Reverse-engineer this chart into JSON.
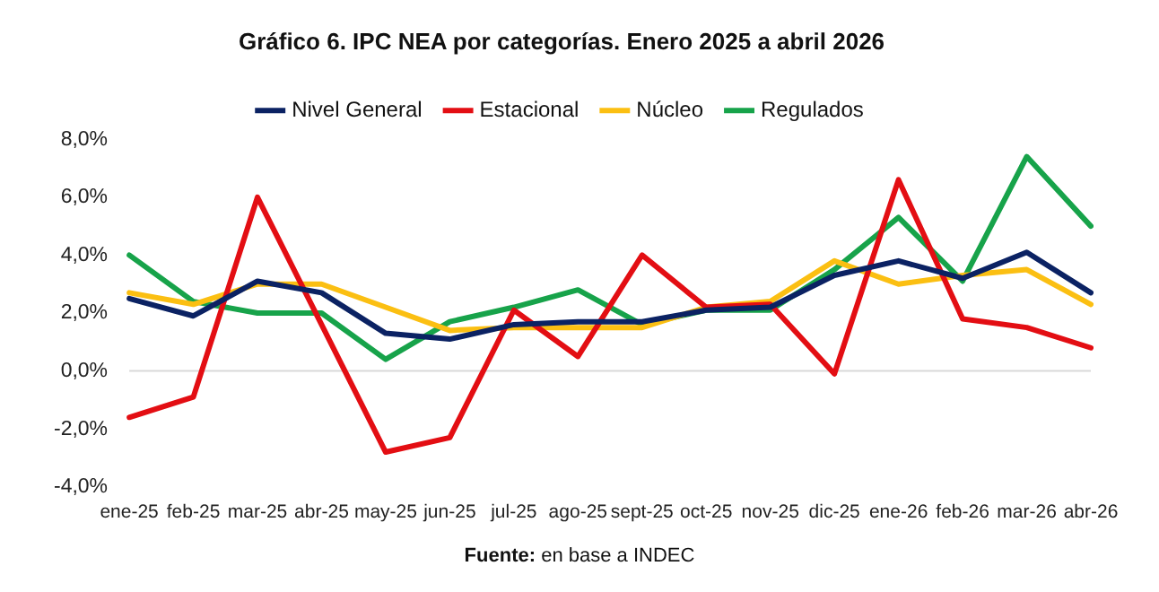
{
  "chart_data": {
    "type": "line",
    "title": "Gráfico 6. IPC NEA por categorías. Enero 2025 a abril 2026",
    "categories": [
      "ene-25",
      "feb-25",
      "mar-25",
      "abr-25",
      "may-25",
      "jun-25",
      "jul-25",
      "ago-25",
      "sept-25",
      "oct-25",
      "nov-25",
      "dic-25",
      "ene-26",
      "feb-26",
      "mar-26",
      "abr-26"
    ],
    "series": [
      {
        "name": "Nivel General",
        "color": "#0b2263",
        "values": [
          2.5,
          1.9,
          3.1,
          2.7,
          1.3,
          1.1,
          1.6,
          1.7,
          1.7,
          2.1,
          2.2,
          3.3,
          3.8,
          3.2,
          4.1,
          2.7
        ]
      },
      {
        "name": "Estacional",
        "color": "#e30e13",
        "values": [
          -1.6,
          -0.9,
          6.0,
          1.6,
          -2.8,
          -2.3,
          2.1,
          0.5,
          4.0,
          2.2,
          2.3,
          -0.1,
          6.6,
          1.8,
          1.5,
          0.8
        ]
      },
      {
        "name": "Núcleo",
        "color": "#fbbf12",
        "values": [
          2.7,
          2.3,
          3.0,
          3.0,
          2.2,
          1.4,
          1.5,
          1.5,
          1.5,
          2.2,
          2.4,
          3.8,
          3.0,
          3.3,
          3.5,
          2.3
        ]
      },
      {
        "name": "Regulados",
        "color": "#17a34a",
        "values": [
          4.0,
          2.4,
          2.0,
          2.0,
          0.4,
          1.7,
          2.2,
          2.8,
          1.6,
          2.1,
          2.1,
          3.5,
          5.3,
          3.1,
          7.4,
          5.0
        ]
      }
    ],
    "ylim": [
      -4,
      8
    ],
    "yticks": [
      {
        "value": -4,
        "label": "-4,0%"
      },
      {
        "value": -2,
        "label": "-2,0%"
      },
      {
        "value": 0,
        "label": "0,0%"
      },
      {
        "value": 2,
        "label": "2,0%"
      },
      {
        "value": 4,
        "label": "4,0%"
      },
      {
        "value": 6,
        "label": "6,0%"
      },
      {
        "value": 8,
        "label": "8,0%"
      }
    ],
    "ref_lines": [
      {
        "axis": "y",
        "value": 0,
        "color": "#d9d9d9"
      }
    ],
    "grid": false,
    "legend": "top",
    "marker": "none",
    "line_style": "solid",
    "annotations": [
      "Fuente: en base a INDEC"
    ]
  }
}
